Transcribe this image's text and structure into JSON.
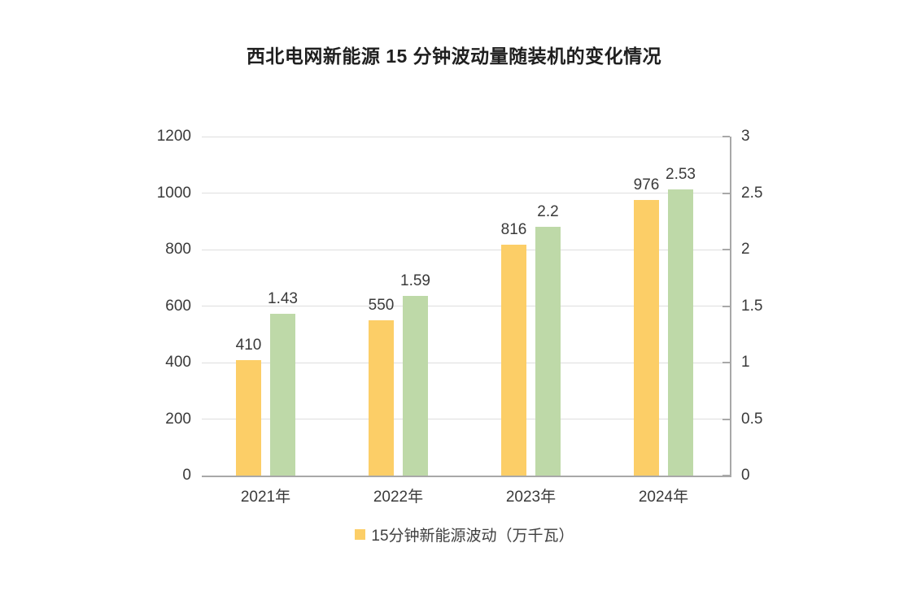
{
  "title": "西北电网新能源 15 分钟波动量随装机的变化情况",
  "chart_data": {
    "type": "bar",
    "title": "西北电网新能源 15 分钟波动量随装机的变化情况",
    "categories": [
      "2021年",
      "2022年",
      "2023年",
      "2024年"
    ],
    "series": [
      {
        "name": "15分钟新能源波动（万千瓦）",
        "axis": "left",
        "color": "#FCCE67",
        "values": [
          410,
          550,
          816,
          976
        ],
        "data_labels": [
          "410",
          "550",
          "816",
          "976"
        ]
      },
      {
        "name": "",
        "axis": "right",
        "color": "#BED9A8",
        "values": [
          1.43,
          1.59,
          2.2,
          2.53
        ],
        "data_labels": [
          "1.43",
          "1.59",
          "2.2",
          "2.53"
        ]
      }
    ],
    "left_axis": {
      "min": 0,
      "max": 1200,
      "ticks": [
        0,
        200,
        400,
        600,
        800,
        1000,
        1200
      ]
    },
    "right_axis": {
      "min": 0,
      "max": 3,
      "ticks": [
        0,
        0.5,
        1,
        1.5,
        2,
        2.5,
        3
      ]
    },
    "grid": true,
    "legend_position": "bottom",
    "colors": {
      "gridline": "#dedede",
      "axis_line": "#a8a8a8",
      "tick_text": "#3a3a3a",
      "title_text": "#1f1f1f"
    }
  }
}
